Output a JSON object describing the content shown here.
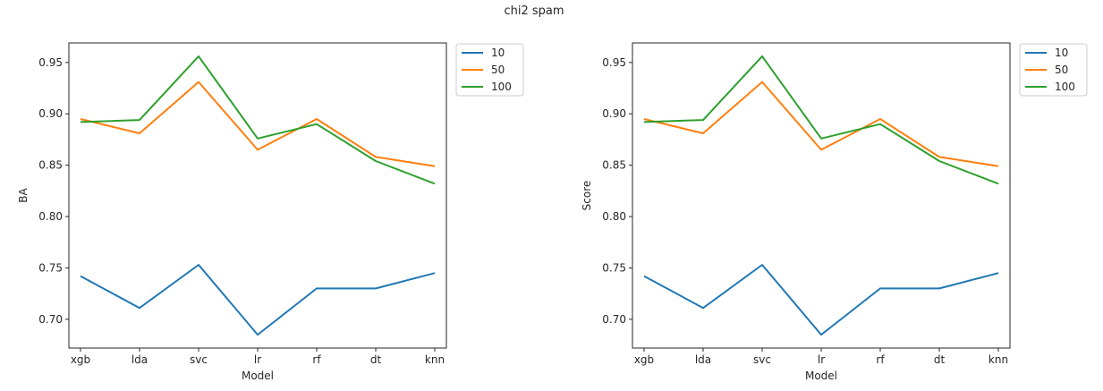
{
  "suptitle": "chi2 spam",
  "colors": {
    "10": "#1f77b4",
    "50": "#ff7f0e",
    "100": "#2ca02c",
    "axis": "#262626"
  },
  "chart_data": [
    {
      "type": "line",
      "title": "",
      "xlabel": "Model",
      "ylabel": "BA",
      "categories": [
        "xgb",
        "lda",
        "svc",
        "lr",
        "rf",
        "dt",
        "knn"
      ],
      "yticks": [
        0.7,
        0.75,
        0.8,
        0.85,
        0.9,
        0.95
      ],
      "ytick_labels": [
        "0.70",
        "0.75",
        "0.80",
        "0.85",
        "0.90",
        "0.95"
      ],
      "ylim": [
        0.672,
        0.969
      ],
      "grid": false,
      "legend_position": "outside-top-right",
      "series": [
        {
          "name": "10",
          "values": [
            0.742,
            0.711,
            0.753,
            0.685,
            0.73,
            0.73,
            0.745
          ]
        },
        {
          "name": "50",
          "values": [
            0.895,
            0.881,
            0.931,
            0.865,
            0.895,
            0.858,
            0.849
          ]
        },
        {
          "name": "100",
          "values": [
            0.892,
            0.894,
            0.956,
            0.876,
            0.89,
            0.854,
            0.832
          ]
        }
      ]
    },
    {
      "type": "line",
      "title": "",
      "xlabel": "Model",
      "ylabel": "Score",
      "categories": [
        "xgb",
        "lda",
        "svc",
        "lr",
        "rf",
        "dt",
        "knn"
      ],
      "yticks": [
        0.7,
        0.75,
        0.8,
        0.85,
        0.9,
        0.95
      ],
      "ytick_labels": [
        "0.70",
        "0.75",
        "0.80",
        "0.85",
        "0.90",
        "0.95"
      ],
      "ylim": [
        0.672,
        0.969
      ],
      "grid": false,
      "legend_position": "outside-top-right",
      "series": [
        {
          "name": "10",
          "values": [
            0.742,
            0.711,
            0.753,
            0.685,
            0.73,
            0.73,
            0.745
          ]
        },
        {
          "name": "50",
          "values": [
            0.895,
            0.881,
            0.931,
            0.865,
            0.895,
            0.858,
            0.849
          ]
        },
        {
          "name": "100",
          "values": [
            0.892,
            0.894,
            0.956,
            0.876,
            0.89,
            0.854,
            0.832
          ]
        }
      ]
    }
  ]
}
